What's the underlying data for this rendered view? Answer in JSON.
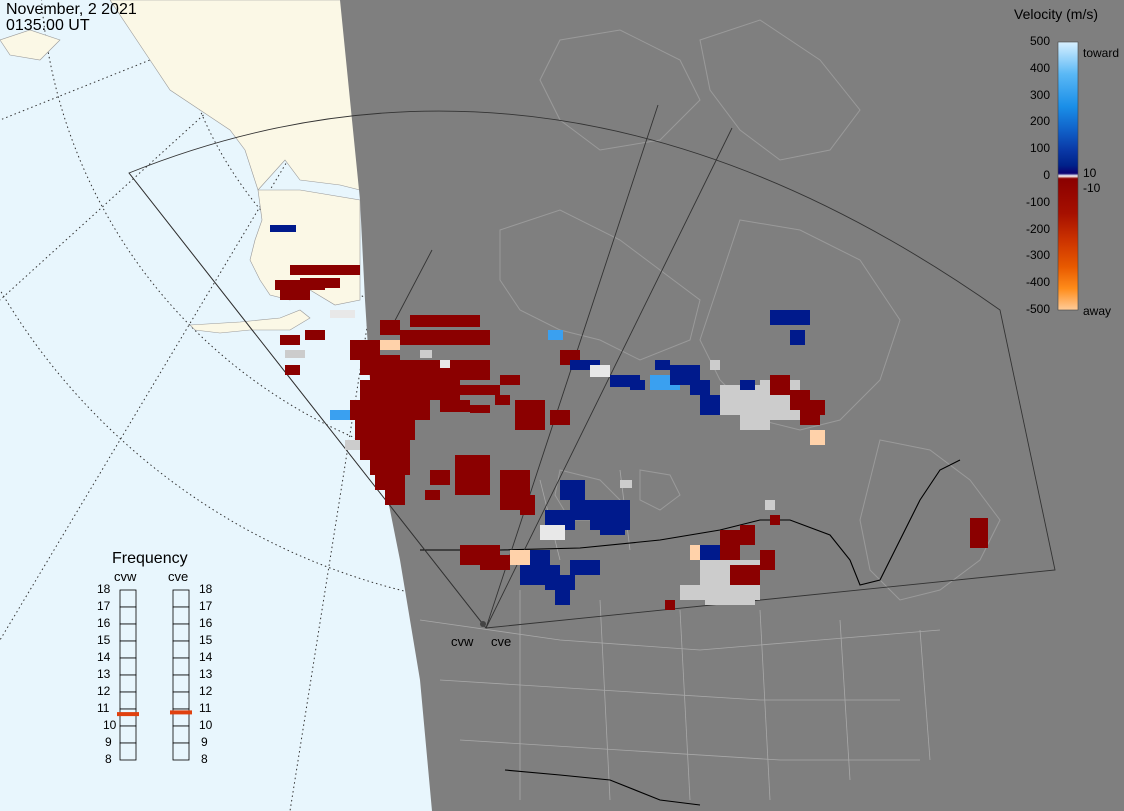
{
  "header": {
    "date": "November, 2 2021",
    "time": "0135:00 UT"
  },
  "velocity_scale": {
    "title": "Velocity (m/s)",
    "ticks": [
      "500",
      "400",
      "300",
      "200",
      "100",
      "0",
      "-100",
      "-200",
      "-300",
      "-400",
      "-500"
    ],
    "near_zero_labels": [
      "10",
      "-10"
    ],
    "toward_label": "toward",
    "away_label": "away",
    "gradient_colors": [
      "#d8f0ff",
      "#5ab8f5",
      "#1a8fe8",
      "#1060c8",
      "#0a3aa8",
      "#00228a",
      "#0b0070",
      "#ffffff",
      "#8b0000",
      "#a61000",
      "#cc3300",
      "#e85a00",
      "#ff8c1a",
      "#ffcc99"
    ]
  },
  "frequency_panel": {
    "title": "Frequency",
    "radars": [
      "cvw",
      "cve"
    ],
    "levels": [
      "18",
      "17",
      "16",
      "15",
      "14",
      "13",
      "12",
      "11",
      "10",
      "9",
      "8"
    ],
    "markers": [
      {
        "radar": "cvw",
        "frequency_mhz": 10.7
      },
      {
        "radar": "cve",
        "frequency_mhz": 10.8
      }
    ],
    "marker_color": "#e0400e"
  },
  "map": {
    "radar_site_labels": [
      "cvw",
      "cve"
    ],
    "ocean_color": "#e8f6fd",
    "land_day_color": "#fbf8e6",
    "night_color": "#7f7f7f",
    "ground_scatter_color": "#cccccc"
  }
}
